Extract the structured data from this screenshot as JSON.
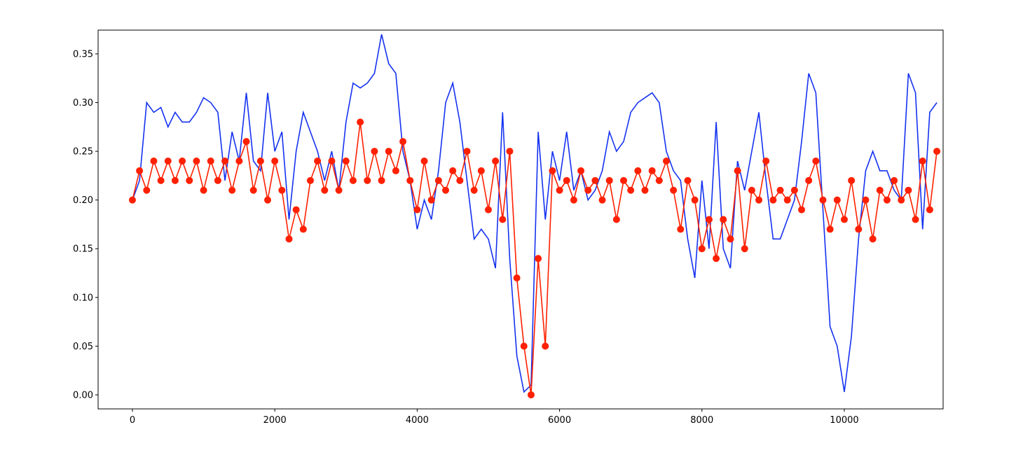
{
  "chart_data": {
    "type": "line",
    "x": [
      0,
      100,
      200,
      300,
      400,
      500,
      600,
      700,
      800,
      900,
      1000,
      1100,
      1200,
      1300,
      1400,
      1500,
      1600,
      1700,
      1800,
      1900,
      2000,
      2100,
      2200,
      2300,
      2400,
      2500,
      2600,
      2700,
      2800,
      2900,
      3000,
      3100,
      3200,
      3300,
      3400,
      3500,
      3600,
      3700,
      3800,
      3900,
      4000,
      4100,
      4200,
      4300,
      4400,
      4500,
      4600,
      4700,
      4800,
      4900,
      5000,
      5100,
      5200,
      5300,
      5400,
      5500,
      5600,
      5700,
      5800,
      5900,
      6000,
      6100,
      6200,
      6300,
      6400,
      6500,
      6600,
      6700,
      6800,
      6900,
      7000,
      7100,
      7200,
      7300,
      7400,
      7500,
      7600,
      7700,
      7800,
      7900,
      8000,
      8100,
      8200,
      8300,
      8400,
      8500,
      8600,
      8700,
      8800,
      8900,
      9000,
      9100,
      9200,
      9300,
      9400,
      9500,
      9600,
      9700,
      9800,
      9900,
      10000,
      10100,
      10200,
      10300,
      10400,
      10500,
      10600,
      10700,
      10800,
      10900,
      11000,
      11100,
      11200,
      11300
    ],
    "series": [
      {
        "color": "#1432f0",
        "marker": false,
        "values": [
          0.2,
          0.22,
          0.3,
          0.29,
          0.295,
          0.275,
          0.29,
          0.28,
          0.28,
          0.29,
          0.305,
          0.3,
          0.29,
          0.22,
          0.27,
          0.24,
          0.31,
          0.24,
          0.23,
          0.31,
          0.25,
          0.27,
          0.18,
          0.25,
          0.29,
          0.27,
          0.25,
          0.22,
          0.25,
          0.21,
          0.28,
          0.32,
          0.315,
          0.32,
          0.33,
          0.37,
          0.34,
          0.33,
          0.25,
          0.22,
          0.17,
          0.2,
          0.18,
          0.23,
          0.3,
          0.32,
          0.28,
          0.22,
          0.16,
          0.17,
          0.16,
          0.13,
          0.29,
          0.14,
          0.04,
          0.003,
          0.01,
          0.27,
          0.18,
          0.25,
          0.22,
          0.27,
          0.21,
          0.23,
          0.2,
          0.21,
          0.23,
          0.27,
          0.25,
          0.26,
          0.29,
          0.3,
          0.305,
          0.31,
          0.3,
          0.25,
          0.23,
          0.22,
          0.16,
          0.12,
          0.22,
          0.15,
          0.28,
          0.15,
          0.13,
          0.24,
          0.21,
          0.25,
          0.29,
          0.22,
          0.16,
          0.16,
          0.18,
          0.2,
          0.26,
          0.33,
          0.31,
          0.19,
          0.07,
          0.05,
          0.003,
          0.06,
          0.16,
          0.23,
          0.25,
          0.23,
          0.23,
          0.21,
          0.2,
          0.33,
          0.31,
          0.17,
          0.29,
          0.3
        ]
      },
      {
        "color": "#ff2000",
        "marker": true,
        "values": [
          0.2,
          0.23,
          0.21,
          0.24,
          0.22,
          0.24,
          0.22,
          0.24,
          0.22,
          0.24,
          0.21,
          0.24,
          0.22,
          0.24,
          0.21,
          0.24,
          0.26,
          0.21,
          0.24,
          0.2,
          0.24,
          0.21,
          0.16,
          0.19,
          0.17,
          0.22,
          0.24,
          0.21,
          0.24,
          0.21,
          0.24,
          0.22,
          0.28,
          0.22,
          0.25,
          0.22,
          0.25,
          0.23,
          0.26,
          0.22,
          0.19,
          0.24,
          0.2,
          0.22,
          0.21,
          0.23,
          0.22,
          0.25,
          0.21,
          0.23,
          0.19,
          0.24,
          0.18,
          0.25,
          0.12,
          0.05,
          0.0,
          0.14,
          0.05,
          0.23,
          0.21,
          0.22,
          0.2,
          0.23,
          0.21,
          0.22,
          0.2,
          0.22,
          0.18,
          0.22,
          0.21,
          0.23,
          0.21,
          0.23,
          0.22,
          0.24,
          0.21,
          0.17,
          0.22,
          0.2,
          0.15,
          0.18,
          0.14,
          0.18,
          0.16,
          0.23,
          0.15,
          0.21,
          0.2,
          0.24,
          0.2,
          0.21,
          0.2,
          0.21,
          0.19,
          0.22,
          0.24,
          0.2,
          0.17,
          0.2,
          0.18,
          0.22,
          0.17,
          0.2,
          0.16,
          0.21,
          0.2,
          0.22,
          0.2,
          0.21,
          0.18,
          0.24,
          0.19,
          0.25
        ]
      }
    ],
    "xlim": [
      -482,
      11388
    ],
    "xticks": [
      0,
      2000,
      4000,
      6000,
      8000,
      10000
    ],
    "ylim": [
      -0.0144,
      0.3744
    ],
    "yticks": [
      {
        "value": 0,
        "label": "0.00"
      },
      0.05,
      {
        "value": 0.1,
        "label": "0.10"
      },
      0.15,
      {
        "value": 0.2,
        "label": "0.20"
      },
      0.25,
      {
        "value": 0.3,
        "label": "0.30"
      },
      0.35
    ],
    "grid": false
  }
}
